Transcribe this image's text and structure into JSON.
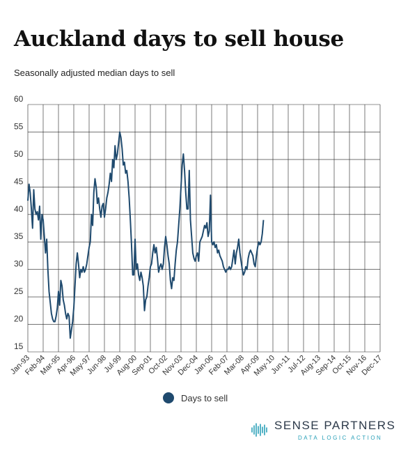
{
  "chart_data": {
    "type": "line",
    "title": "Auckland days to sell house",
    "subtitle": "Seasonally adjusted median days to sell",
    "x_ticks": [
      "Jan-93",
      "Feb-94",
      "Mar-95",
      "Apr-96",
      "May-97",
      "Jun-98",
      "Jul-99",
      "Aug-00",
      "Sep-01",
      "Oct-02",
      "Nov-03",
      "Dec-04",
      "Jan-06",
      "Feb-07",
      "Mar-08",
      "Apr-09",
      "May-10",
      "Jun-11",
      "Jul-12",
      "Aug-13",
      "Sep-14",
      "Oct-15",
      "Nov-16",
      "Dec-17"
    ],
    "y_ticks": [
      15,
      20,
      25,
      30,
      35,
      40,
      45,
      50,
      55,
      60
    ],
    "ylim": [
      15,
      60
    ],
    "grid": true,
    "series": [
      {
        "name": "Days to sell",
        "color": "#1f4a6e",
        "points": [
          [
            "Jan-93",
            42.5
          ],
          [
            "Feb-93",
            45.5
          ],
          [
            "Mar-93",
            44
          ],
          [
            "Apr-93",
            41
          ],
          [
            "May-93",
            37.5
          ],
          [
            "Jun-93",
            44.5
          ],
          [
            "Jul-93",
            41
          ],
          [
            "Aug-93",
            40
          ],
          [
            "Sep-93",
            40.5
          ],
          [
            "Oct-93",
            39
          ],
          [
            "Nov-93",
            41.5
          ],
          [
            "Dec-93",
            35.5
          ],
          [
            "Jan-94",
            40
          ],
          [
            "Feb-94",
            39
          ],
          [
            "Mar-94",
            36
          ],
          [
            "Apr-94",
            33
          ],
          [
            "May-94",
            35.5
          ],
          [
            "Jun-94",
            30
          ],
          [
            "Jul-94",
            26
          ],
          [
            "Aug-94",
            24
          ],
          [
            "Sep-94",
            22
          ],
          [
            "Oct-94",
            21
          ],
          [
            "Nov-94",
            20.5
          ],
          [
            "Dec-94",
            20.5
          ],
          [
            "Jan-95",
            21.5
          ],
          [
            "Feb-95",
            23
          ],
          [
            "Mar-95",
            26
          ],
          [
            "Apr-95",
            23.5
          ],
          [
            "May-95",
            28
          ],
          [
            "Jun-95",
            27
          ],
          [
            "Jul-95",
            24.5
          ],
          [
            "Aug-95",
            23.5
          ],
          [
            "Sep-95",
            22
          ],
          [
            "Oct-95",
            21
          ],
          [
            "Nov-95",
            22
          ],
          [
            "Dec-95",
            21.5
          ],
          [
            "Jan-96",
            17.5
          ],
          [
            "Feb-96",
            19
          ],
          [
            "Mar-96",
            20.5
          ],
          [
            "Apr-96",
            23
          ],
          [
            "May-96",
            27
          ],
          [
            "Jun-96",
            31
          ],
          [
            "Jul-96",
            33
          ],
          [
            "Aug-96",
            31
          ],
          [
            "Sep-96",
            28.5
          ],
          [
            "Oct-96",
            30
          ],
          [
            "Nov-96",
            29.5
          ],
          [
            "Dec-96",
            30.5
          ],
          [
            "Jan-97",
            29.5
          ],
          [
            "Feb-97",
            30
          ],
          [
            "Mar-97",
            31
          ],
          [
            "Apr-97",
            32.5
          ],
          [
            "May-97",
            34
          ],
          [
            "Jun-97",
            35
          ],
          [
            "Jul-97",
            40
          ],
          [
            "Aug-97",
            38
          ],
          [
            "Sep-97",
            44
          ],
          [
            "Oct-97",
            46.5
          ],
          [
            "Nov-97",
            45
          ],
          [
            "Dec-97",
            42
          ],
          [
            "Jan-98",
            43
          ],
          [
            "Feb-98",
            41
          ],
          [
            "Mar-98",
            39.5
          ],
          [
            "Apr-98",
            41.5
          ],
          [
            "May-98",
            42
          ],
          [
            "Jun-98",
            39.5
          ],
          [
            "Jul-98",
            41
          ],
          [
            "Aug-98",
            43
          ],
          [
            "Sep-98",
            44
          ],
          [
            "Oct-98",
            45.5
          ],
          [
            "Nov-98",
            47.5
          ],
          [
            "Dec-98",
            46
          ],
          [
            "Jan-99",
            50
          ],
          [
            "Feb-99",
            48.5
          ],
          [
            "Mar-99",
            52.5
          ],
          [
            "Apr-99",
            50
          ],
          [
            "May-99",
            51
          ],
          [
            "Jun-99",
            53
          ],
          [
            "Jul-99",
            55
          ],
          [
            "Aug-99",
            54
          ],
          [
            "Sep-99",
            52
          ],
          [
            "Oct-99",
            49
          ],
          [
            "Nov-99",
            49.5
          ],
          [
            "Dec-99",
            47.5
          ],
          [
            "Jan-00",
            48
          ],
          [
            "Feb-00",
            46
          ],
          [
            "Mar-00",
            43
          ],
          [
            "Apr-00",
            39
          ],
          [
            "May-00",
            34.5
          ],
          [
            "Jun-00",
            29
          ],
          [
            "Jul-00",
            29
          ],
          [
            "Aug-00",
            35.5
          ],
          [
            "Sep-00",
            30
          ],
          [
            "Oct-00",
            31
          ],
          [
            "Nov-00",
            29
          ],
          [
            "Dec-00",
            28
          ],
          [
            "Jan-01",
            29.5
          ],
          [
            "Feb-01",
            28.5
          ],
          [
            "Mar-01",
            27
          ],
          [
            "Apr-01",
            22.5
          ],
          [
            "May-01",
            24.5
          ],
          [
            "Jun-01",
            25
          ],
          [
            "Jul-01",
            27
          ],
          [
            "Aug-01",
            28.5
          ],
          [
            "Sep-01",
            30.5
          ],
          [
            "Oct-01",
            31
          ],
          [
            "Nov-01",
            33
          ],
          [
            "Dec-01",
            34.5
          ],
          [
            "Jan-02",
            33
          ],
          [
            "Feb-02",
            34
          ],
          [
            "Mar-02",
            32
          ],
          [
            "Apr-02",
            29.5
          ],
          [
            "May-02",
            30.5
          ],
          [
            "Jun-02",
            31
          ],
          [
            "Jul-02",
            30
          ],
          [
            "Aug-02",
            31
          ],
          [
            "Sep-02",
            34
          ],
          [
            "Oct-02",
            36
          ],
          [
            "Nov-02",
            34.5
          ],
          [
            "Dec-02",
            32.5
          ],
          [
            "Jan-03",
            31
          ],
          [
            "Feb-03",
            28
          ],
          [
            "Mar-03",
            26.5
          ],
          [
            "Apr-03",
            28.5
          ],
          [
            "May-03",
            28
          ],
          [
            "Jun-03",
            31
          ],
          [
            "Jul-03",
            33.5
          ],
          [
            "Aug-03",
            35
          ],
          [
            "Sep-03",
            38
          ],
          [
            "Oct-03",
            41
          ],
          [
            "Nov-03",
            45
          ],
          [
            "Dec-03",
            49
          ],
          [
            "Jan-04",
            51
          ],
          [
            "Feb-04",
            48
          ],
          [
            "Mar-04",
            44
          ],
          [
            "Apr-04",
            41
          ],
          [
            "May-04",
            41
          ],
          [
            "Jun-04",
            48
          ],
          [
            "Jul-04",
            39
          ],
          [
            "Aug-04",
            36
          ],
          [
            "Sep-04",
            33
          ],
          [
            "Oct-04",
            32
          ],
          [
            "Nov-04",
            31.5
          ],
          [
            "Dec-04",
            32.5
          ],
          [
            "Jan-05",
            33
          ],
          [
            "Feb-05",
            31.5
          ],
          [
            "Mar-05",
            35
          ],
          [
            "Apr-05",
            35.5
          ],
          [
            "May-05",
            36
          ],
          [
            "Jun-05",
            37
          ],
          [
            "Jul-05",
            38
          ],
          [
            "Aug-05",
            37.5
          ],
          [
            "Sep-05",
            38.5
          ],
          [
            "Oct-05",
            36
          ],
          [
            "Nov-05",
            37
          ],
          [
            "Dec-05",
            43.5
          ],
          [
            "Jan-06",
            35
          ],
          [
            "Feb-06",
            34.5
          ],
          [
            "Mar-06",
            35
          ],
          [
            "Apr-06",
            34
          ],
          [
            "May-06",
            34.5
          ],
          [
            "Jun-06",
            33
          ],
          [
            "Jul-06",
            33.5
          ],
          [
            "Aug-06",
            32.5
          ],
          [
            "Sep-06",
            32
          ],
          [
            "Oct-06",
            31.5
          ],
          [
            "Nov-06",
            30.5
          ],
          [
            "Dec-06",
            30
          ],
          [
            "Jan-07",
            29.5
          ],
          [
            "Feb-07",
            30
          ],
          [
            "Mar-07",
            30
          ],
          [
            "Apr-07",
            30.5
          ],
          [
            "May-07",
            30
          ],
          [
            "Jun-07",
            30.5
          ],
          [
            "Jul-07",
            32
          ],
          [
            "Aug-07",
            33.5
          ],
          [
            "Sep-07",
            31
          ],
          [
            "Oct-07",
            33
          ],
          [
            "Nov-07",
            34
          ],
          [
            "Dec-07",
            35.5
          ],
          [
            "Jan-08",
            33
          ],
          [
            "Feb-08",
            31.5
          ],
          [
            "Mar-08",
            30
          ],
          [
            "Apr-08",
            29
          ],
          [
            "May-08",
            29.5
          ],
          [
            "Jun-08",
            30.5
          ],
          [
            "Jul-08",
            30
          ],
          [
            "Aug-08",
            32
          ],
          [
            "Sep-08",
            33
          ],
          [
            "Oct-08",
            33.5
          ],
          [
            "Nov-08",
            33
          ],
          [
            "Dec-08",
            32.5
          ],
          [
            "Jan-09",
            31
          ],
          [
            "Feb-09",
            30.5
          ],
          [
            "Mar-09",
            32.5
          ],
          [
            "Apr-09",
            34
          ],
          [
            "May-09",
            35
          ],
          [
            "Jun-09",
            34.5
          ],
          [
            "Jul-09",
            35
          ],
          [
            "Aug-09",
            36.5
          ],
          [
            "Sep-09",
            39
          ]
        ]
      }
    ],
    "legend_position": "bottom"
  },
  "brand": {
    "name": "SENSE PARTNERS",
    "tagline": "DATA LOGIC ACTION",
    "logo_icon": "soundwave-icon",
    "logo_color": "#2aa0b8"
  }
}
